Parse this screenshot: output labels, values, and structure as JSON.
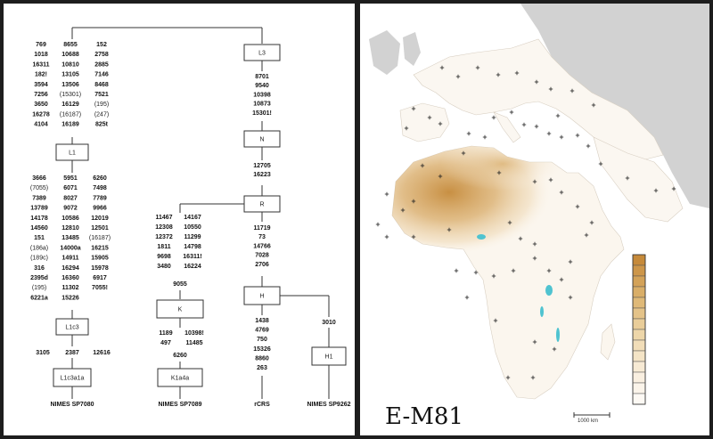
{
  "tree": {
    "nodes": {
      "L3": "L3",
      "N": "N",
      "R": "R",
      "H": "H",
      "H1": "H1",
      "L1": "L1",
      "L1c3": "L1c3",
      "L1c3a1a": "L1c3a1a",
      "K": "K",
      "K1a4a": "K1a4a"
    },
    "groups": {
      "root_col1": [
        "769",
        "1018",
        "16311",
        "182!",
        "3594",
        "7256",
        "3650",
        "16278",
        "4104"
      ],
      "root_col2": [
        "8655",
        "10688",
        "10810",
        "13105",
        "13506",
        "(15301)",
        "16129",
        "(16187)",
        "16189"
      ],
      "root_col3": [
        "152",
        "2758",
        "2885",
        "7146",
        "8468",
        "7521",
        "(195)",
        "(247)",
        "825t"
      ],
      "l3_n": [
        "8701",
        "9540",
        "10398",
        "10873",
        "15301!"
      ],
      "n_r": [
        "12705",
        "16223"
      ],
      "r_h": [
        "11719",
        "73",
        "14766",
        "7028",
        "2706"
      ],
      "r_k_col1": [
        "11467",
        "12308",
        "12372",
        "1811",
        "9698",
        "3480"
      ],
      "r_k_col2": [
        "14167",
        "10550",
        "11299",
        "14798",
        "16311!",
        "16224"
      ],
      "r_k_tail": "9055",
      "l1_col1": [
        "3666",
        "(7055)",
        "7389",
        "13789",
        "14178",
        "14560",
        "151",
        "(186a)",
        "(189c)",
        "316",
        "2395d",
        "(195)",
        "6221a"
      ],
      "l1_col2": [
        "5951",
        "6071",
        "8027",
        "9072",
        "10586",
        "12810",
        "13485",
        "14000a",
        "14911",
        "16294",
        "16360",
        "11302",
        "15226"
      ],
      "l1_col3": [
        "6260",
        "7498",
        "7789",
        "9966",
        "12019",
        "12501",
        "(16187)",
        "16215",
        "15905",
        "15978",
        "6917",
        "7055!"
      ],
      "l1c3_child": [
        "3105",
        "2387",
        "12616"
      ],
      "k_col1": [
        "1189",
        "497"
      ],
      "k_col2": [
        "10398!",
        "11485"
      ],
      "k_tail": "6260",
      "h_rcrs": [
        "1438",
        "4769",
        "750",
        "15326",
        "8860",
        "263"
      ],
      "h_h1": "3010"
    },
    "samples": {
      "s1": "NIMES SP7080",
      "s2": "NIMES SP7089",
      "s3": "rCRS",
      "s4": "NIMES SP9262"
    }
  },
  "map": {
    "title": "E-M81",
    "scale_label": "1000 km",
    "colors": {
      "sea": "#ffffff",
      "land_out": "#d4d4d4",
      "land": "#fbf7f1",
      "hot": "#c8944a",
      "lake": "#4fc3d0"
    },
    "legend_colors": [
      "#c68a3a",
      "#cd9649",
      "#d3a258",
      "#d9ae68",
      "#dfb978",
      "#e4c389",
      "#e9cd99",
      "#edd6a9",
      "#f1ddb8",
      "#f4e4c6",
      "#f7ead4",
      "#f9efe0",
      "#fbf4ea",
      "#fdf9f4"
    ]
  }
}
